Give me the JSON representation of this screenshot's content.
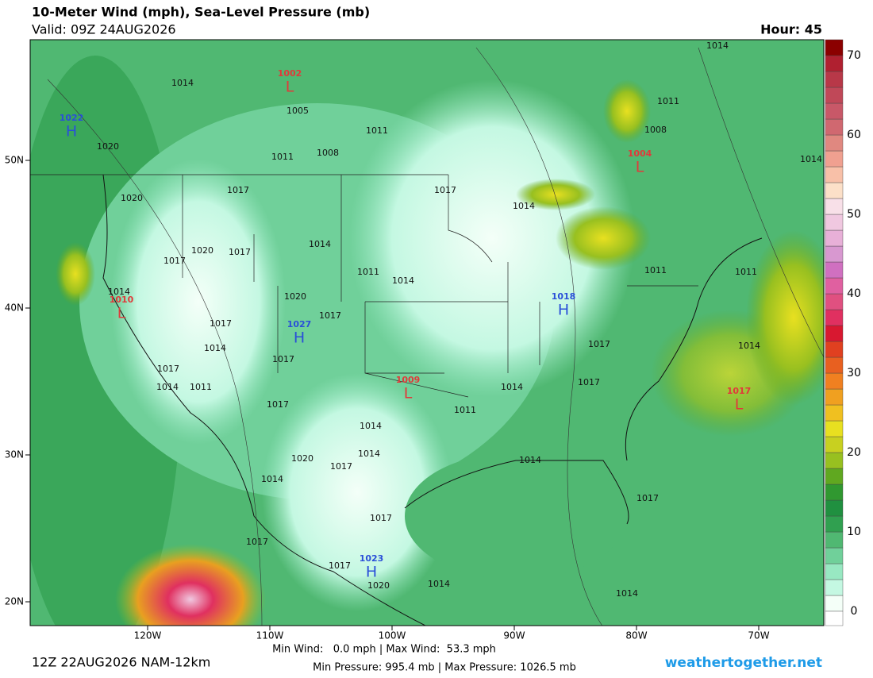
{
  "header": {
    "title": "10-Meter Wind (mph), Sea-Level Pressure (mb)",
    "valid": "Valid: 09Z 24AUG2026",
    "hour": "Hour: 45"
  },
  "map": {
    "lat_labels": [
      "50N",
      "40N",
      "30N",
      "20N"
    ],
    "lon_labels": [
      "120W",
      "110W",
      "100W",
      "90W",
      "80W",
      "70W"
    ],
    "pressure_centers": [
      {
        "letter": "H",
        "value": "1022",
        "color": "#2a4fd8"
      },
      {
        "letter": "L",
        "value": "1002",
        "color": "#e03a3a"
      },
      {
        "letter": "L",
        "value": "1004",
        "color": "#e03a3a"
      },
      {
        "letter": "L",
        "value": "1010",
        "color": "#e03a3a"
      },
      {
        "letter": "H",
        "value": "1027",
        "color": "#2a4fd8"
      },
      {
        "letter": "H",
        "value": "1018",
        "color": "#2a4fd8"
      },
      {
        "letter": "L",
        "value": "1009",
        "color": "#e03a3a"
      },
      {
        "letter": "L",
        "value": "1017",
        "color": "#e03a3a"
      },
      {
        "letter": "H",
        "value": "1023",
        "color": "#2a4fd8"
      }
    ],
    "isobar_labels": [
      "1014",
      "1005",
      "1011",
      "1008",
      "1011",
      "1020",
      "1020",
      "1017",
      "1014",
      "1011",
      "1008",
      "1014",
      "1017",
      "1014",
      "1020",
      "1017",
      "1017",
      "1014",
      "1011",
      "1014",
      "1014",
      "1020",
      "1017",
      "1017",
      "1014",
      "1017",
      "1017",
      "1014",
      "1011",
      "1017",
      "1011",
      "1011",
      "1017",
      "1014",
      "1014",
      "1017",
      "1011",
      "1014",
      "1014",
      "1020",
      "1017",
      "1014",
      "1014",
      "1017",
      "1017",
      "1017",
      "1017",
      "1020",
      "1014",
      "1014"
    ]
  },
  "colorbar": {
    "ticks": [
      "70",
      "60",
      "50",
      "40",
      "30",
      "20",
      "10",
      "0"
    ],
    "colors": [
      "#f4fff8",
      "#c4f8e2",
      "#98e8c2",
      "#70d09a",
      "#50b872",
      "#30a050",
      "#209040",
      "#309830",
      "#60a820",
      "#98c020",
      "#c8d020",
      "#e8e020",
      "#f0c020",
      "#f0a020",
      "#f08020",
      "#e86020",
      "#e04020",
      "#d81830",
      "#e03060",
      "#e05080",
      "#e060a0",
      "#d070c0",
      "#d898d0",
      "#e8b0d8",
      "#f0c8e0",
      "#f8e0e8",
      "#fce0c8",
      "#f8c0a8",
      "#f0a090",
      "#e08880",
      "#d06870",
      "#c85868",
      "#c04858",
      "#b83848",
      "#b02030",
      "#8b0000"
    ]
  },
  "footer": {
    "model": "12Z 22AUG2026 NAM-12km",
    "wind": "Min Wind:   0.0 mph | Max Wind:  53.3 mph",
    "pressure": "Min Pressure: 995.4 mb | Max Pressure: 1026.5 mb",
    "site": "weathertogether.net"
  }
}
